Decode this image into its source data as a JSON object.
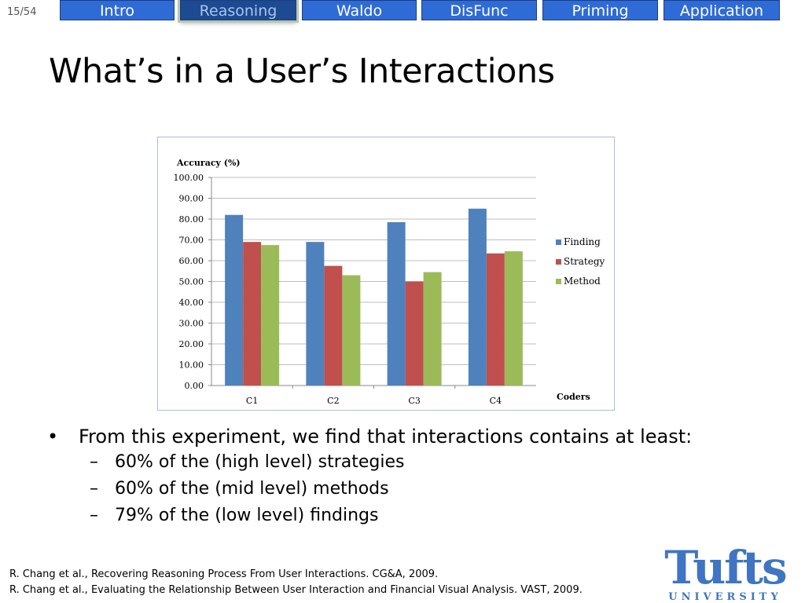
{
  "slide": {
    "number": "15/54"
  },
  "nav": {
    "tabs": [
      {
        "label": "Intro",
        "active": false
      },
      {
        "label": "Reasoning",
        "active": true
      },
      {
        "label": "Waldo",
        "active": false
      },
      {
        "label": "DisFunc",
        "active": false
      },
      {
        "label": "Priming",
        "active": false
      },
      {
        "label": "Application",
        "active": false
      }
    ]
  },
  "title": "What’s in a User’s Interactions",
  "chart_data": {
    "type": "bar",
    "ylabel": "Accuracy (%)",
    "xlabel": "Coders",
    "categories": [
      "C1",
      "C2",
      "C3",
      "C4"
    ],
    "ylim": [
      0,
      100
    ],
    "ytick_labels": [
      "0.00",
      "10.00",
      "20.00",
      "30.00",
      "40.00",
      "50.00",
      "60.00",
      "70.00",
      "80.00",
      "90.00",
      "100.00"
    ],
    "grid": true,
    "legend_position": "right",
    "series": [
      {
        "name": "Finding",
        "color": "#4f81bd",
        "values": [
          82,
          69,
          78.5,
          85
        ]
      },
      {
        "name": "Strategy",
        "color": "#c0504d",
        "values": [
          69,
          57.5,
          50,
          63.5
        ]
      },
      {
        "name": "Method",
        "color": "#9bbb59",
        "values": [
          67.5,
          53,
          54.5,
          64.5
        ]
      }
    ]
  },
  "bullets": {
    "main": "From this experiment, we find that interactions contains at least:",
    "main_marker": "•",
    "sub_marker": "–",
    "subs": [
      "60% of the (high level) strategies",
      "60% of the (mid level) methods",
      "79% of the (low level) findings"
    ]
  },
  "references": [
    "R. Chang et al., Recovering Reasoning  Process From User Interactions.  CG&A, 2009.",
    "R. Chang et al., Evaluating the Relationship Between User Interaction and Financial Visual Analysis. VAST, 2009."
  ],
  "logo": {
    "main": "Tufts",
    "sub": "UNIVERSITY"
  }
}
